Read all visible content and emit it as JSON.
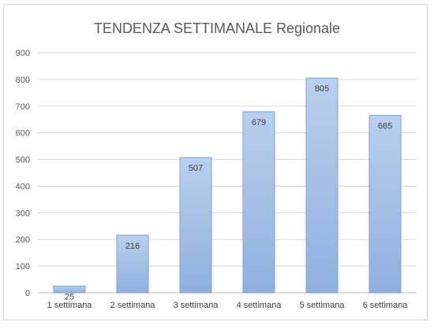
{
  "chart_data": {
    "type": "bar",
    "title": "TENDENZA SETTIMANALE Regionale",
    "xlabel": "",
    "ylabel": "",
    "categories": [
      "1 settimana",
      "2 settimana",
      "3 settimana",
      "4 settimana",
      "5 settimana",
      "6 settimana"
    ],
    "values": [
      25,
      216,
      507,
      679,
      805,
      665
    ],
    "data_labels": [
      "25",
      "216",
      "507",
      "679",
      "805",
      "665"
    ],
    "ylim": [
      0,
      900
    ],
    "yticks": [
      0,
      100,
      200,
      300,
      400,
      500,
      600,
      700,
      800,
      900
    ],
    "grid": true,
    "legend": "none",
    "bar_color": "#a9c4e8",
    "bar_edge": "#7fa2d0"
  }
}
